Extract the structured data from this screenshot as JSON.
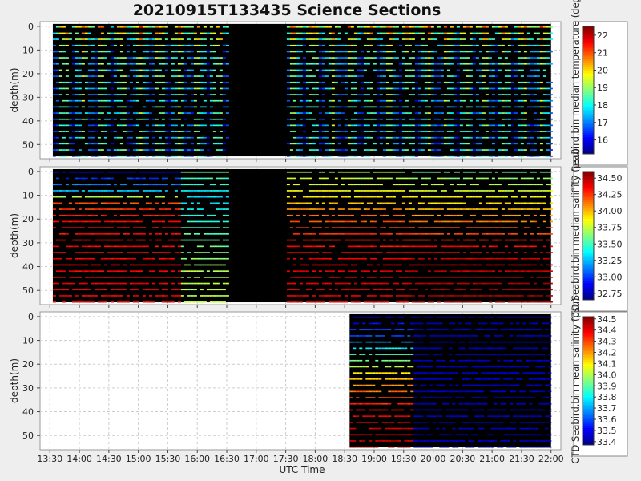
{
  "chart_data": {
    "title": "20210915T133435 Science Sections",
    "xlabel": "UTC Time",
    "xlim": [
      "13:20",
      "22:10"
    ],
    "x_ticks": [
      "13:30",
      "14:00",
      "14:30",
      "15:00",
      "15:30",
      "16:00",
      "16:30",
      "17:00",
      "17:30",
      "18:00",
      "18:30",
      "19:00",
      "19:30",
      "20:00",
      "20:30",
      "21:00",
      "21:30",
      "22:00"
    ],
    "panels": [
      {
        "type": "heatmap",
        "ylabel": "depth(m)",
        "ylim": [
          56,
          -2
        ],
        "y_ticks": [
          "0",
          "10",
          "20",
          "30",
          "40",
          "50"
        ],
        "colorbar_label": "CTD Seabird.bin median temperature (degC)",
        "colorbar_range": [
          15.2,
          22.5
        ],
        "colorbar_ticks": [
          "16",
          "17",
          "18",
          "19",
          "20",
          "21",
          "22"
        ],
        "colormap": "jet",
        "data_time_range": [
          "13:33",
          "22:00"
        ],
        "gaps": [
          [
            "16:31",
            "17:30"
          ]
        ],
        "note_pattern": "vertical banding: alternating warm (yellow) and cool (blue) columns, mostly cyan-green",
        "depth_profile": [
          {
            "depth": 0,
            "value": 19.6
          },
          {
            "depth": 10,
            "value": 18.0
          },
          {
            "depth": 20,
            "value": 17.8
          },
          {
            "depth": 30,
            "value": 17.8
          },
          {
            "depth": 40,
            "value": 17.6
          },
          {
            "depth": 55,
            "value": 17.5
          }
        ]
      },
      {
        "type": "heatmap",
        "ylabel": "depth(m)",
        "ylim": [
          56,
          -2
        ],
        "y_ticks": [
          "0",
          "10",
          "20",
          "30",
          "40",
          "50"
        ],
        "colorbar_label": "CTD Seabird.bin median salinity (psu)",
        "colorbar_range": [
          32.65,
          34.6
        ],
        "colorbar_ticks": [
          "32.75",
          "33.00",
          "33.25",
          "33.50",
          "33.75",
          "34.00",
          "34.25",
          "34.50"
        ],
        "colormap": "jet",
        "data_time_range": [
          "13:33",
          "22:00"
        ],
        "gaps": [
          [
            "16:31",
            "17:30"
          ]
        ],
        "segments": [
          {
            "start": "13:33",
            "end": "15:42",
            "profile": [
              {
                "depth": 0,
                "value": 32.85
              },
              {
                "depth": 8,
                "value": 33.3
              },
              {
                "depth": 13,
                "value": 34.2
              },
              {
                "depth": 20,
                "value": 34.35
              },
              {
                "depth": 55,
                "value": 34.4
              }
            ]
          },
          {
            "start": "15:42",
            "end": "16:31",
            "profile": [
              {
                "depth": 0,
                "value": 33.6
              },
              {
                "depth": 10,
                "value": 33.3
              },
              {
                "depth": 20,
                "value": 33.45
              },
              {
                "depth": 40,
                "value": 33.7
              },
              {
                "depth": 55,
                "value": 33.75
              }
            ]
          },
          {
            "start": "17:30",
            "end": "19:35",
            "profile": [
              {
                "depth": 0,
                "value": 33.7
              },
              {
                "depth": 10,
                "value": 33.9
              },
              {
                "depth": 20,
                "value": 34.2
              },
              {
                "depth": 35,
                "value": 34.4
              },
              {
                "depth": 55,
                "value": 34.42
              }
            ]
          },
          {
            "start": "19:35",
            "end": "22:00",
            "profile": [
              {
                "depth": 0,
                "value": 33.6
              },
              {
                "depth": 10,
                "value": 33.85
              },
              {
                "depth": 20,
                "value": 34.1
              },
              {
                "depth": 35,
                "value": 34.45
              },
              {
                "depth": 55,
                "value": 34.55
              }
            ]
          }
        ]
      },
      {
        "type": "heatmap",
        "ylabel": "depth(m)",
        "ylim": [
          56,
          -2
        ],
        "y_ticks": [
          "0",
          "10",
          "20",
          "30",
          "40",
          "50"
        ],
        "colorbar_label": "CTD Seabird.bin mean salinity (psu)",
        "colorbar_range": [
          33.37,
          34.52
        ],
        "colorbar_ticks": [
          "33.4",
          "33.5",
          "33.6",
          "33.7",
          "33.8",
          "33.9",
          "34.0",
          "34.1",
          "34.2",
          "34.3",
          "34.4",
          "34.5"
        ],
        "colormap": "jet",
        "data_time_range": [
          "18:35",
          "22:00"
        ],
        "segments": [
          {
            "start": "18:35",
            "end": "19:38",
            "profile": [
              {
                "depth": 0,
                "value": 33.5
              },
              {
                "depth": 8,
                "value": 33.6
              },
              {
                "depth": 15,
                "value": 33.85
              },
              {
                "depth": 25,
                "value": 34.15
              },
              {
                "depth": 40,
                "value": 34.4
              },
              {
                "depth": 55,
                "value": 34.45
              }
            ]
          },
          {
            "start": "19:38",
            "end": "22:00",
            "profile": [
              {
                "depth": 0,
                "value": 33.45
              },
              {
                "depth": 55,
                "value": 33.45
              }
            ]
          }
        ]
      }
    ]
  }
}
